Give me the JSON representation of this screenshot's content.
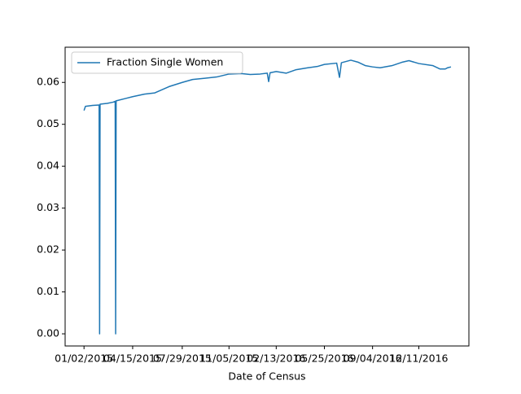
{
  "chart_data": {
    "type": "line",
    "xlabel": "Date of Census",
    "x": [
      "01/02/2015",
      "01/05/2015",
      "01/20/2015",
      "02/03/2015",
      "02/04/2015",
      "02/05/2015",
      "02/20/2015",
      "03/05/2015",
      "03/09/2015",
      "03/10/2015",
      "03/11/2015",
      "04/01/2015",
      "04/15/2015",
      "05/10/2015",
      "06/01/2015",
      "07/01/2015",
      "07/29/2015",
      "08/20/2015",
      "09/15/2015",
      "10/10/2015",
      "11/05/2015",
      "12/01/2015",
      "12/20/2015",
      "01/10/2016",
      "01/25/2016",
      "01/28/2016",
      "01/31/2016",
      "02/13/2016",
      "03/05/2016",
      "03/25/2016",
      "04/20/2016",
      "05/10/2016",
      "05/25/2016",
      "06/20/2016",
      "06/26/2016",
      "06/30/2016",
      "07/20/2016",
      "08/05/2016",
      "08/20/2016",
      "09/04/2016",
      "09/20/2016",
      "10/15/2016",
      "11/05/2016",
      "11/20/2016",
      "12/11/2016",
      "01/10/2017",
      "01/25/2017",
      "02/05/2017",
      "02/10/2017",
      "02/17/2017"
    ],
    "series": [
      {
        "name": "Fraction Single Women",
        "color": "#1f77b4",
        "values": [
          0.0533,
          0.0543,
          0.0545,
          0.0546,
          0.0,
          0.0548,
          0.055,
          0.0553,
          0.0555,
          0.0,
          0.0556,
          0.0562,
          0.0566,
          0.0572,
          0.0575,
          0.059,
          0.06,
          0.0607,
          0.061,
          0.0613,
          0.062,
          0.0621,
          0.0619,
          0.062,
          0.0622,
          0.0602,
          0.0623,
          0.0626,
          0.0622,
          0.063,
          0.0635,
          0.0638,
          0.0643,
          0.0646,
          0.0612,
          0.0647,
          0.0653,
          0.0648,
          0.064,
          0.0637,
          0.0635,
          0.064,
          0.0648,
          0.0652,
          0.0645,
          0.064,
          0.0632,
          0.0632,
          0.0635,
          0.0637
        ]
      }
    ],
    "xlim": [
      "11/23/2014",
      "03/27/2017"
    ],
    "xticks": [
      "01/02/2015",
      "04/15/2015",
      "07/29/2015",
      "11/05/2015",
      "02/13/2016",
      "05/25/2016",
      "09/04/2016",
      "12/11/2016"
    ],
    "ylim": [
      -0.0029,
      0.0684
    ],
    "yticks": [
      {
        "value": 0,
        "label": "0.00"
      },
      0.01,
      0.02,
      0.03,
      0.04,
      0.05,
      0.06
    ],
    "legend": "upper left"
  }
}
